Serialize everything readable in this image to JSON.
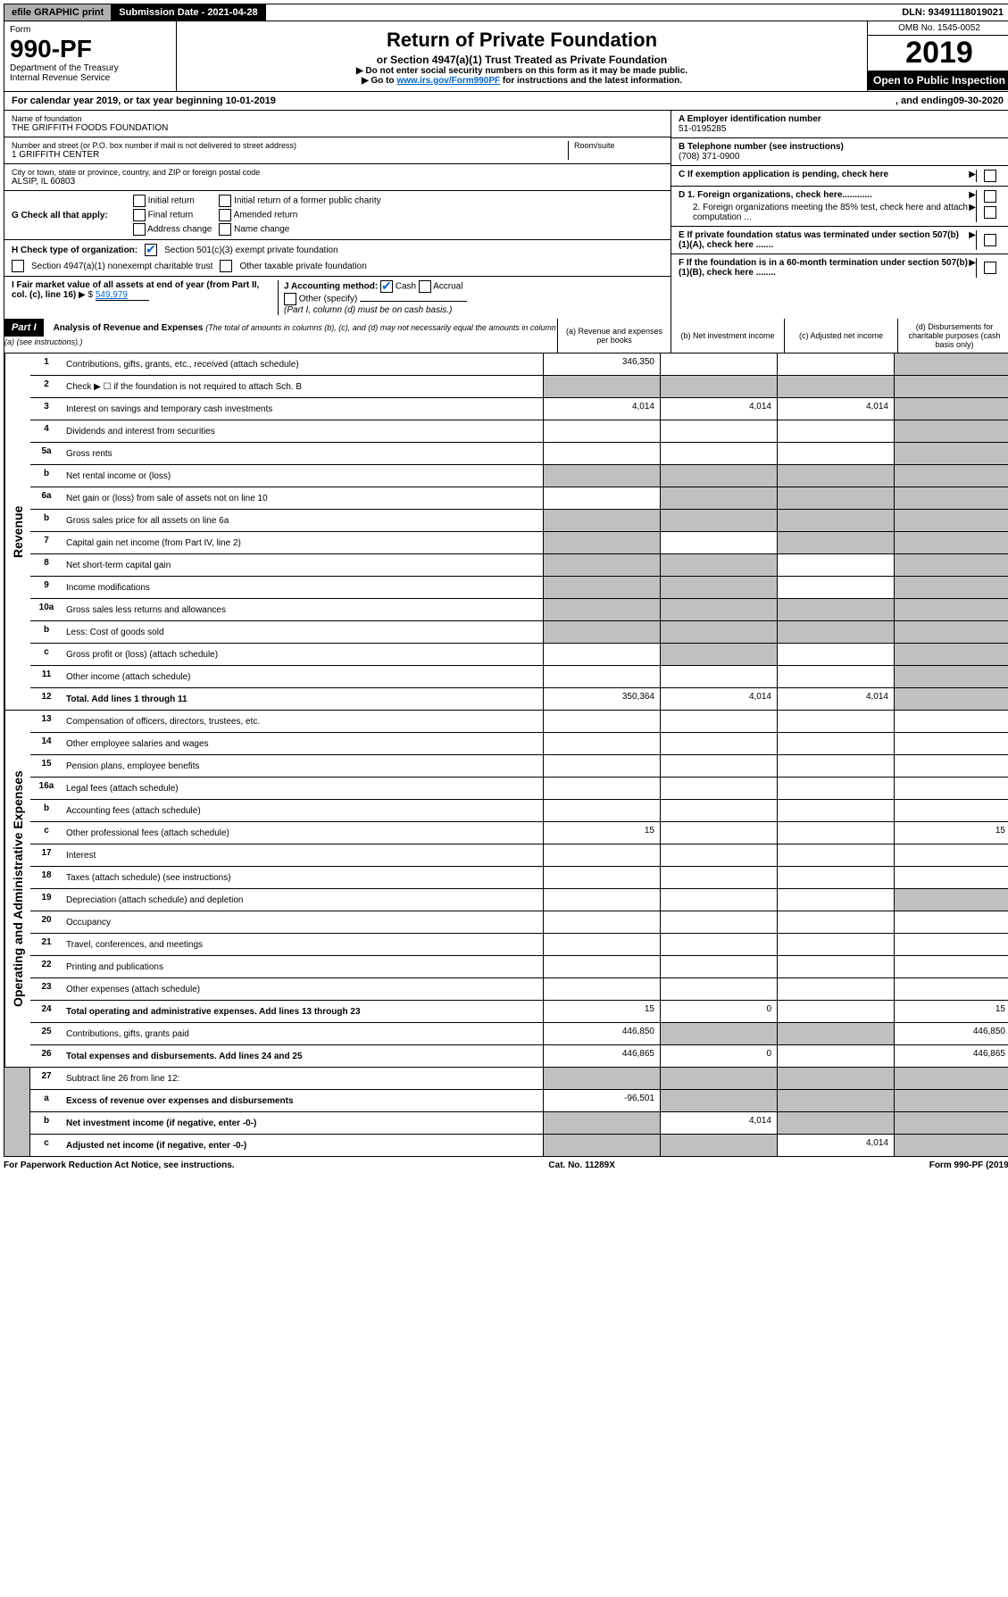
{
  "top_bar": {
    "efile": "efile GRAPHIC print",
    "submission": "Submission Date - 2021-04-28",
    "dln": "DLN: 93491118019021"
  },
  "header": {
    "form_label": "Form",
    "form_number": "990-PF",
    "dept": "Department of the Treasury",
    "irs": "Internal Revenue Service",
    "title": "Return of Private Foundation",
    "subtitle": "or Section 4947(a)(1) Trust Treated as Private Foundation",
    "instr1": "▶ Do not enter social security numbers on this form as it may be made public.",
    "instr2_pre": "▶ Go to ",
    "instr2_link": "www.irs.gov/Form990PF",
    "instr2_post": " for instructions and the latest information.",
    "omb": "OMB No. 1545-0052",
    "year": "2019",
    "open": "Open to Public Inspection"
  },
  "cal_year": {
    "text": "For calendar year 2019, or tax year beginning 10-01-2019",
    "ending_label": ", and ending ",
    "ending": "09-30-2020"
  },
  "foundation": {
    "name_label": "Name of foundation",
    "name": "THE GRIFFITH FOODS FOUNDATION",
    "addr_label": "Number and street (or P.O. box number if mail is not delivered to street address)",
    "addr": "1 GRIFFITH CENTER",
    "room_label": "Room/suite",
    "city_label": "City or town, state or province, country, and ZIP or foreign postal code",
    "city": "ALSIP, IL  60803",
    "ein_label": "A Employer identification number",
    "ein": "51-0195285",
    "phone_label": "B Telephone number (see instructions)",
    "phone": "(708) 371-0900",
    "c_label": "C If exemption application is pending, check here",
    "d1": "D 1. Foreign organizations, check here............",
    "d2": "2. Foreign organizations meeting the 85% test, check here and attach computation ...",
    "e_label": "E  If private foundation status was terminated under section 507(b)(1)(A), check here .......",
    "f_label": "F  If the foundation is in a 60-month termination under section 507(b)(1)(B), check here ........"
  },
  "section_g": {
    "label": "G Check all that apply:",
    "opts": [
      "Initial return",
      "Final return",
      "Address change",
      "Initial return of a former public charity",
      "Amended return",
      "Name change"
    ]
  },
  "section_h": {
    "label": "H Check type of organization:",
    "opt1": "Section 501(c)(3) exempt private foundation",
    "opt2": "Section 4947(a)(1) nonexempt charitable trust",
    "opt3": "Other taxable private foundation"
  },
  "section_i": {
    "label": "I Fair market value of all assets at end of year (from Part II, col. (c), line 16)",
    "value": "549,979"
  },
  "section_j": {
    "label": "J Accounting method:",
    "cash": "Cash",
    "accrual": "Accrual",
    "other": "Other (specify)",
    "note": "(Part I, column (d) must be on cash basis.)"
  },
  "part1": {
    "label": "Part I",
    "title": "Analysis of Revenue and Expenses",
    "title_note": "(The total of amounts in columns (b), (c), and (d) may not necessarily equal the amounts in column (a) (see instructions).)",
    "col_a": "(a)   Revenue and expenses per books",
    "col_b": "(b)  Net investment income",
    "col_c": "(c)  Adjusted net income",
    "col_d": "(d)  Disbursements for charitable purposes (cash basis only)"
  },
  "revenue_label": "Revenue",
  "expenses_label": "Operating and Administrative Expenses",
  "rows": {
    "r1": {
      "num": "1",
      "desc": "Contributions, gifts, grants, etc., received (attach schedule)",
      "a": "346,350"
    },
    "r2": {
      "num": "2",
      "desc": "Check ▶ ☐ if the foundation is not required to attach Sch. B"
    },
    "r3": {
      "num": "3",
      "desc": "Interest on savings and temporary cash investments",
      "a": "4,014",
      "b": "4,014",
      "c": "4,014"
    },
    "r4": {
      "num": "4",
      "desc": "Dividends and interest from securities"
    },
    "r5a": {
      "num": "5a",
      "desc": "Gross rents"
    },
    "r5b": {
      "num": "b",
      "desc": "Net rental income or (loss)"
    },
    "r6a": {
      "num": "6a",
      "desc": "Net gain or (loss) from sale of assets not on line 10"
    },
    "r6b": {
      "num": "b",
      "desc": "Gross sales price for all assets on line 6a"
    },
    "r7": {
      "num": "7",
      "desc": "Capital gain net income (from Part IV, line 2)"
    },
    "r8": {
      "num": "8",
      "desc": "Net short-term capital gain"
    },
    "r9": {
      "num": "9",
      "desc": "Income modifications"
    },
    "r10a": {
      "num": "10a",
      "desc": "Gross sales less returns and allowances"
    },
    "r10b": {
      "num": "b",
      "desc": "Less: Cost of goods sold"
    },
    "r10c": {
      "num": "c",
      "desc": "Gross profit or (loss) (attach schedule)"
    },
    "r11": {
      "num": "11",
      "desc": "Other income (attach schedule)"
    },
    "r12": {
      "num": "12",
      "desc": "Total. Add lines 1 through 11",
      "a": "350,364",
      "b": "4,014",
      "c": "4,014",
      "bold": true
    },
    "r13": {
      "num": "13",
      "desc": "Compensation of officers, directors, trustees, etc."
    },
    "r14": {
      "num": "14",
      "desc": "Other employee salaries and wages"
    },
    "r15": {
      "num": "15",
      "desc": "Pension plans, employee benefits"
    },
    "r16a": {
      "num": "16a",
      "desc": "Legal fees (attach schedule)"
    },
    "r16b": {
      "num": "b",
      "desc": "Accounting fees (attach schedule)"
    },
    "r16c": {
      "num": "c",
      "desc": "Other professional fees (attach schedule)",
      "a": "15",
      "d": "15"
    },
    "r17": {
      "num": "17",
      "desc": "Interest"
    },
    "r18": {
      "num": "18",
      "desc": "Taxes (attach schedule) (see instructions)"
    },
    "r19": {
      "num": "19",
      "desc": "Depreciation (attach schedule) and depletion"
    },
    "r20": {
      "num": "20",
      "desc": "Occupancy"
    },
    "r21": {
      "num": "21",
      "desc": "Travel, conferences, and meetings"
    },
    "r22": {
      "num": "22",
      "desc": "Printing and publications"
    },
    "r23": {
      "num": "23",
      "desc": "Other expenses (attach schedule)"
    },
    "r24": {
      "num": "24",
      "desc": "Total operating and administrative expenses. Add lines 13 through 23",
      "a": "15",
      "b": "0",
      "d": "15",
      "bold": true
    },
    "r25": {
      "num": "25",
      "desc": "Contributions, gifts, grants paid",
      "a": "446,850",
      "d": "446,850"
    },
    "r26": {
      "num": "26",
      "desc": "Total expenses and disbursements. Add lines 24 and 25",
      "a": "446,865",
      "b": "0",
      "d": "446,865",
      "bold": true
    },
    "r27": {
      "num": "27",
      "desc": "Subtract line 26 from line 12:"
    },
    "r27a": {
      "num": "a",
      "desc": "Excess of revenue over expenses and disbursements",
      "a": "-96,501",
      "bold": true
    },
    "r27b": {
      "num": "b",
      "desc": "Net investment income (if negative, enter -0-)",
      "b": "4,014",
      "bold": true
    },
    "r27c": {
      "num": "c",
      "desc": "Adjusted net income (if negative, enter -0-)",
      "c": "4,014",
      "bold": true
    }
  },
  "footer": {
    "left": "For Paperwork Reduction Act Notice, see instructions.",
    "center": "Cat. No. 11289X",
    "right": "Form 990-PF (2019)"
  }
}
